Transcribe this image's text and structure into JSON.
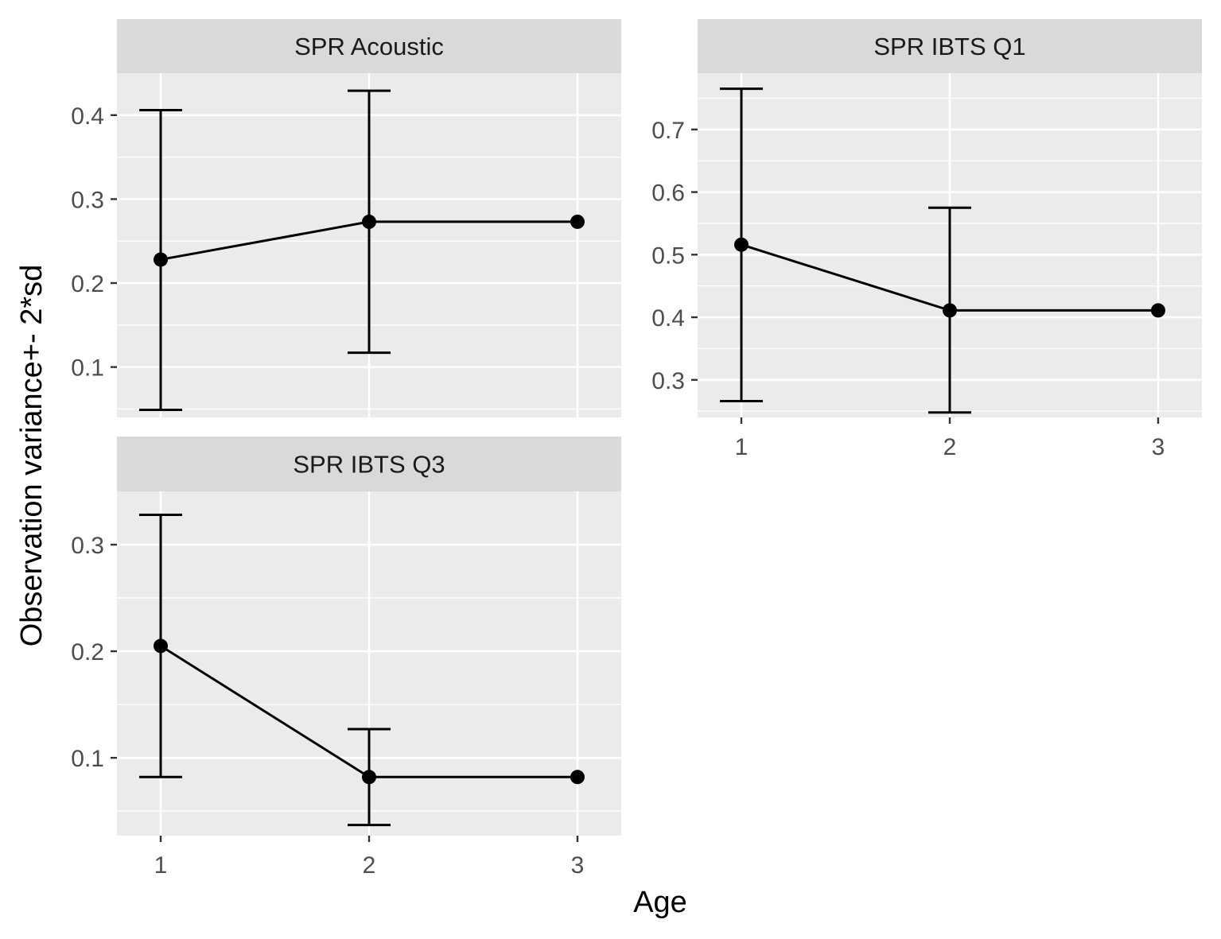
{
  "chart_data": [
    {
      "type": "line",
      "title": "SPR Acoustic",
      "x": [
        1,
        2,
        3
      ],
      "y": [
        0.228,
        0.273,
        0.273
      ],
      "ymin": [
        0.049,
        0.117,
        null
      ],
      "ymax": [
        0.406,
        0.429,
        null
      ],
      "xlim": [
        0.79,
        3.21
      ],
      "ylim": [
        0.04,
        0.45
      ],
      "yticks": [
        0.1,
        0.2,
        0.3,
        0.4
      ],
      "ytick_labels": [
        "0.1",
        "0.2",
        "0.3",
        "0.4"
      ],
      "xticks": [
        1,
        2,
        3
      ],
      "xtick_labels": [
        "1",
        "2",
        "3"
      ],
      "show_x_ticks": false,
      "grid": true
    },
    {
      "type": "line",
      "title": "SPR IBTS Q1",
      "x": [
        1,
        2,
        3
      ],
      "y": [
        0.516,
        0.411,
        0.411
      ],
      "ymin": [
        0.266,
        0.248,
        null
      ],
      "ymax": [
        0.765,
        0.575,
        null
      ],
      "xlim": [
        0.79,
        3.21
      ],
      "ylim": [
        0.24,
        0.79
      ],
      "yticks": [
        0.3,
        0.4,
        0.5,
        0.6,
        0.7
      ],
      "ytick_labels": [
        "0.3",
        "0.4",
        "0.5",
        "0.6",
        "0.7"
      ],
      "xticks": [
        1,
        2,
        3
      ],
      "xtick_labels": [
        "1",
        "2",
        "3"
      ],
      "show_x_ticks": true,
      "grid": true
    },
    {
      "type": "line",
      "title": "SPR IBTS Q3",
      "x": [
        1,
        2,
        3
      ],
      "y": [
        0.205,
        0.082,
        0.082
      ],
      "ymin": [
        0.082,
        0.037,
        null
      ],
      "ymax": [
        0.328,
        0.127,
        null
      ],
      "xlim": [
        0.79,
        3.21
      ],
      "ylim": [
        0.027,
        0.35
      ],
      "yticks": [
        0.1,
        0.2,
        0.3
      ],
      "ytick_labels": [
        "0.1",
        "0.2",
        "0.3"
      ],
      "xticks": [
        1,
        2,
        3
      ],
      "xtick_labels": [
        "1",
        "2",
        "3"
      ],
      "show_x_ticks": true,
      "grid": true
    }
  ],
  "xlabel": "Age",
  "ylabel": "Observation variance+- 2*sd",
  "colors": {
    "panel_background": "#ebebeb",
    "strip_background": "#d9d9d9",
    "grid": "#ffffff",
    "line": "#000000",
    "tick_text": "#4d4d4d"
  }
}
